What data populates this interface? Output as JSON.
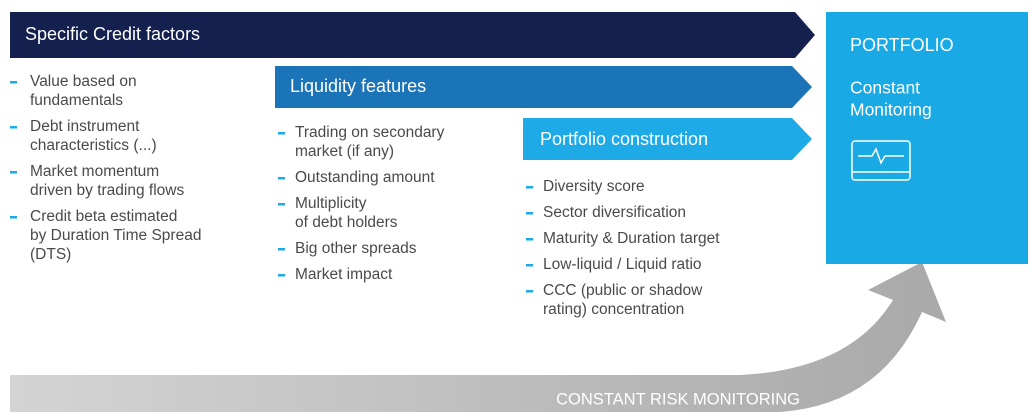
{
  "columns": [
    {
      "title": "Specific Credit factors",
      "items": [
        [
          "Value based on",
          "fundamentals"
        ],
        [
          "Debt instrument",
          "characteristics (...)"
        ],
        [
          "Market momentum",
          "driven by trading flows"
        ],
        [
          "Credit beta estimated",
          "by Duration Time Spread",
          "(DTS)"
        ]
      ]
    },
    {
      "title": "Liquidity features",
      "items": [
        [
          "Trading on secondary",
          "market (if any)"
        ],
        [
          "Outstanding amount"
        ],
        [
          "Multiplicity",
          "of debt holders"
        ],
        [
          "Big other spreads"
        ],
        [
          "Market impact"
        ]
      ]
    },
    {
      "title": "Portfolio construction",
      "items": [
        [
          "Diversity score"
        ],
        [
          "Sector diversification"
        ],
        [
          "Maturity & Duration target"
        ],
        [
          "Low-liquid / Liquid ratio"
        ],
        [
          "CCC (public or shadow",
          "rating) concentration"
        ]
      ]
    }
  ],
  "portfolio": {
    "title": "PORTFOLIO",
    "subtitle": [
      "Constant",
      "Monitoring"
    ]
  },
  "footer": "CONSTANT RISK MONITORING"
}
